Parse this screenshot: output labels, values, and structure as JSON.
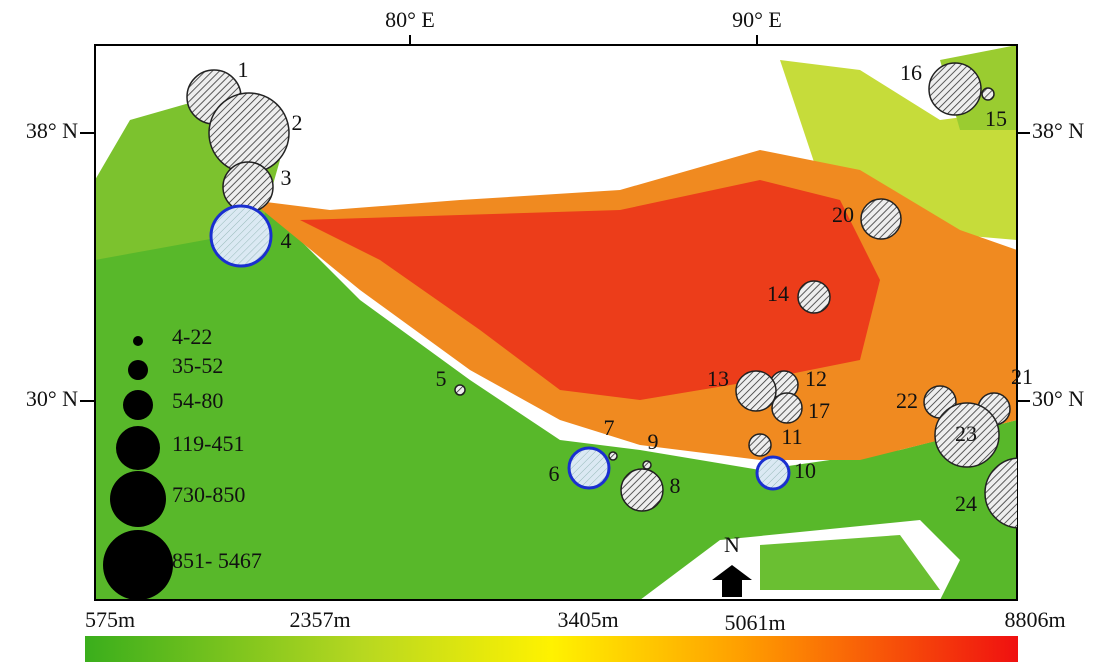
{
  "map": {
    "lon_labels": [
      "80° E",
      "90° E"
    ],
    "lat_labels": [
      "38° N",
      "30° N"
    ],
    "sites": [
      "1",
      "2",
      "3",
      "4",
      "5",
      "6",
      "7",
      "8",
      "9",
      "10",
      "11",
      "12",
      "13",
      "14",
      "15",
      "16",
      "17",
      "20",
      "21",
      "22",
      "23",
      "24"
    ],
    "legend": [
      "4-22",
      "35-52",
      "54-80",
      "119-451",
      "730-850",
      "851- 5467"
    ],
    "north": "N",
    "colorbar": [
      "575m",
      "2357m",
      "3405m",
      "5061m",
      "8806m"
    ]
  }
}
